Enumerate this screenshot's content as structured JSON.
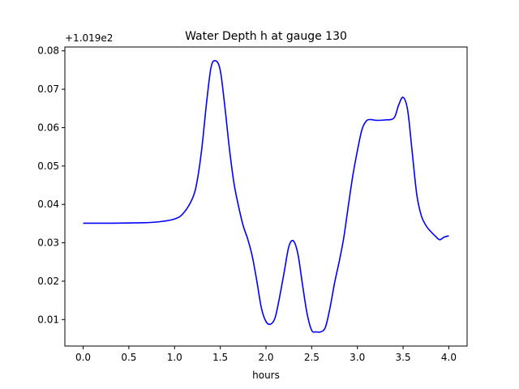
{
  "chart_data": {
    "type": "line",
    "title": "Water Depth h at gauge 130",
    "xlabel": "hours",
    "ylabel": "",
    "offset_label": "+1.019e2",
    "xlim": [
      -0.2,
      4.2
    ],
    "ylim": [
      0.0031,
      0.081
    ],
    "xticks": [
      0.0,
      0.5,
      1.0,
      1.5,
      2.0,
      2.5,
      3.0,
      3.5,
      4.0
    ],
    "xtick_labels": [
      "0.0",
      "0.5",
      "1.0",
      "1.5",
      "2.0",
      "2.5",
      "3.0",
      "3.5",
      "4.0"
    ],
    "yticks": [
      0.01,
      0.02,
      0.03,
      0.04,
      0.05,
      0.06,
      0.07,
      0.08
    ],
    "ytick_labels": [
      "0.01",
      "0.02",
      "0.03",
      "0.04",
      "0.05",
      "0.06",
      "0.07",
      "0.08"
    ],
    "grid": false,
    "series": [
      {
        "color": "#0000ff",
        "x": [
          0.0,
          0.3,
          0.6,
          0.8,
          1.0,
          1.1,
          1.2,
          1.25,
          1.3,
          1.35,
          1.4,
          1.45,
          1.5,
          1.55,
          1.6,
          1.65,
          1.7,
          1.75,
          1.8,
          1.85,
          1.9,
          1.95,
          2.0,
          2.05,
          2.1,
          2.15,
          2.2,
          2.25,
          2.3,
          2.35,
          2.4,
          2.45,
          2.5,
          2.55,
          2.6,
          2.65,
          2.7,
          2.75,
          2.8,
          2.85,
          2.9,
          2.95,
          3.0,
          3.05,
          3.1,
          3.15,
          3.2,
          3.3,
          3.4,
          3.45,
          3.5,
          3.55,
          3.6,
          3.65,
          3.7,
          3.75,
          3.8,
          3.85,
          3.9,
          3.95,
          4.0
        ],
        "y": [
          0.0351,
          0.0351,
          0.0352,
          0.0354,
          0.0362,
          0.0378,
          0.0418,
          0.0465,
          0.055,
          0.0665,
          0.0758,
          0.0774,
          0.0749,
          0.0655,
          0.0545,
          0.0455,
          0.0395,
          0.0345,
          0.031,
          0.0265,
          0.02,
          0.013,
          0.0095,
          0.0088,
          0.0105,
          0.016,
          0.0225,
          0.029,
          0.0305,
          0.027,
          0.019,
          0.0115,
          0.0072,
          0.0068,
          0.0068,
          0.008,
          0.013,
          0.0195,
          0.025,
          0.0312,
          0.0395,
          0.0475,
          0.054,
          0.0595,
          0.0618,
          0.0621,
          0.0619,
          0.062,
          0.0625,
          0.0658,
          0.0679,
          0.0645,
          0.0535,
          0.0425,
          0.037,
          0.0345,
          0.033,
          0.0318,
          0.0308,
          0.0315,
          0.0318
        ]
      }
    ]
  }
}
